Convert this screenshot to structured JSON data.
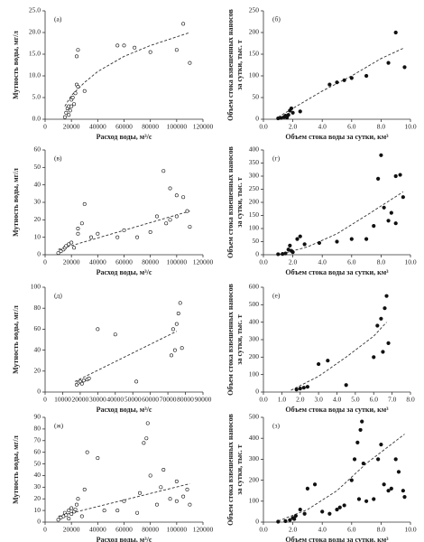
{
  "chart_data": [
    {
      "type": "scatter",
      "label": "(а)",
      "marker": "open",
      "ylabel": [
        "Мутность воды, мг/л"
      ],
      "xlabel": "Расход воды, м³/с",
      "xlim": [
        0,
        120000
      ],
      "xticks": [
        0,
        20000,
        40000,
        60000,
        80000,
        100000,
        120000
      ],
      "ylim": [
        0,
        25
      ],
      "yticks": [
        {
          "value": 0,
          "label": "0.0"
        },
        {
          "value": 5,
          "label": "5.0"
        },
        {
          "value": 10,
          "label": "10.0"
        },
        {
          "value": 15,
          "label": "15.0"
        },
        {
          "value": 20,
          "label": "20.0"
        },
        {
          "value": 25,
          "label": "25.0"
        }
      ],
      "x": [
        15000,
        16000,
        17000,
        18000,
        19000,
        20000,
        21000,
        22000,
        23000,
        24000,
        25000,
        24000,
        25000,
        30000,
        20000,
        18000,
        55000,
        60000,
        68000,
        80000,
        100000,
        105000,
        110000
      ],
      "y": [
        0.5,
        1.5,
        2.5,
        3,
        2,
        4.5,
        5,
        3.5,
        6,
        8,
        7.5,
        14.5,
        16,
        6.5,
        3,
        1,
        17,
        17,
        16.5,
        15.5,
        16,
        22,
        13
      ],
      "trend": {
        "x": [
          15000,
          20000,
          30000,
          40000,
          60000,
          80000,
          110000
        ],
        "y": [
          3,
          5.5,
          8.5,
          11,
          14.5,
          17,
          20
        ]
      }
    },
    {
      "type": "scatter",
      "label": "(б)",
      "marker": "filled",
      "ylabel": [
        "Объем стока взвешенных наносов",
        "за сутки, тыс. т"
      ],
      "xlabel": "Объем стока воды за сутки, км³",
      "xlim": [
        0,
        10
      ],
      "xticks": [
        {
          "value": 0,
          "label": "0.0"
        },
        {
          "value": 2,
          "label": "2.0"
        },
        {
          "value": 4,
          "label": "4.0"
        },
        {
          "value": 6,
          "label": "6.0"
        },
        {
          "value": 8,
          "label": "8.0"
        },
        {
          "value": 10,
          "label": "10.0"
        }
      ],
      "ylim": [
        0,
        250
      ],
      "yticks": [
        0,
        50,
        100,
        150,
        200,
        250
      ],
      "x": [
        1.0,
        1.2,
        1.4,
        1.5,
        1.6,
        1.7,
        1.8,
        1.9,
        2.0,
        2.5,
        4.5,
        5.0,
        5.5,
        6.0,
        7.0,
        8.5,
        9.0,
        9.6
      ],
      "y": [
        2,
        3,
        5,
        8,
        4,
        10,
        20,
        25,
        15,
        18,
        80,
        85,
        90,
        95,
        100,
        130,
        200,
        120
      ],
      "trend": {
        "x": [
          1,
          2,
          4,
          6,
          8,
          9.6
        ],
        "y": [
          5,
          25,
          65,
          100,
          140,
          165
        ]
      }
    },
    {
      "type": "scatter",
      "label": "(в)",
      "marker": "open",
      "ylabel": [
        "Мутность воды, мг/л"
      ],
      "xlabel": "Расход воды, м³/с",
      "xlim": [
        0,
        120000
      ],
      "xticks": [
        0,
        20000,
        40000,
        60000,
        80000,
        100000,
        120000
      ],
      "ylim": [
        0,
        60
      ],
      "yticks": [
        0,
        10,
        20,
        30,
        40,
        50,
        60
      ],
      "x": [
        10000,
        12000,
        14000,
        15000,
        16000,
        18000,
        20000,
        22000,
        25000,
        25000,
        28000,
        30000,
        35000,
        40000,
        55000,
        60000,
        70000,
        80000,
        85000,
        90000,
        92000,
        95000,
        95000,
        100000,
        100000,
        105000,
        108000,
        110000
      ],
      "y": [
        1,
        2,
        3,
        4,
        5,
        6,
        7,
        4,
        12,
        15,
        18,
        29,
        10,
        12,
        10,
        14,
        10,
        13,
        22,
        48,
        18,
        20,
        38,
        34,
        22,
        33,
        25,
        16
      ],
      "trend": {
        "x": [
          10000,
          110000
        ],
        "y": [
          3,
          25
        ]
      }
    },
    {
      "type": "scatter",
      "label": "(г)",
      "marker": "filled",
      "ylabel": [
        "Объем стока взвешенных наносов",
        "за сутки, тыс. т"
      ],
      "xlabel": "Объем стока воды за сутки, км³",
      "xlim": [
        0,
        10
      ],
      "xticks": [
        {
          "value": 0,
          "label": "0.0"
        },
        {
          "value": 2,
          "label": "2.0"
        },
        {
          "value": 4,
          "label": "4.0"
        },
        {
          "value": 6,
          "label": "6.0"
        },
        {
          "value": 8,
          "label": "8.0"
        },
        {
          "value": 10,
          "label": "10.0"
        }
      ],
      "ylim": [
        0,
        400
      ],
      "yticks": [
        0,
        50,
        100,
        150,
        200,
        250,
        300,
        350,
        400
      ],
      "x": [
        1.0,
        1.3,
        1.5,
        1.7,
        1.8,
        1.9,
        2.0,
        2.3,
        2.5,
        2.8,
        3.8,
        5.0,
        6.0,
        7.0,
        7.5,
        7.8,
        8.0,
        8.2,
        8.5,
        8.7,
        9.0,
        9.3,
        9.5,
        9.0
      ],
      "y": [
        2,
        3,
        5,
        20,
        35,
        15,
        10,
        60,
        70,
        40,
        45,
        50,
        60,
        60,
        110,
        290,
        380,
        180,
        130,
        160,
        300,
        305,
        220,
        120
      ],
      "trend": {
        "x": [
          1,
          3,
          5,
          7,
          9.5
        ],
        "y": [
          0,
          30,
          80,
          150,
          240
        ]
      }
    },
    {
      "type": "scatter",
      "label": "(д)",
      "marker": "open",
      "ylabel": [
        "Мутность воды, мг/л"
      ],
      "xlabel": "Расход воды, м³/с",
      "xlim": [
        0,
        90000
      ],
      "xticks": [
        0,
        10000,
        20000,
        30000,
        40000,
        50000,
        60000,
        70000,
        80000,
        90000
      ],
      "ylim": [
        0,
        100
      ],
      "yticks": [
        0,
        20,
        40,
        60,
        80,
        100
      ],
      "x": [
        18000,
        19000,
        20000,
        21000,
        22000,
        24000,
        25000,
        30000,
        40000,
        52000,
        72000,
        74000,
        75000,
        76000,
        77000,
        78000,
        73000
      ],
      "y": [
        7,
        9,
        10,
        8,
        11,
        12,
        13,
        60,
        55,
        10,
        35,
        40,
        65,
        75,
        85,
        42,
        60
      ],
      "trend": {
        "x": [
          17000,
          75000
        ],
        "y": [
          10,
          58
        ]
      }
    },
    {
      "type": "scatter",
      "label": "(е)",
      "marker": "filled",
      "ylabel": [
        "Объем стока взвешенных наносов",
        "за сутки, тыс. т"
      ],
      "xlabel": "Объем стока воды за сутки, км³",
      "xlim": [
        0,
        8
      ],
      "xticks": [
        {
          "value": 0,
          "label": "0.0"
        },
        {
          "value": 1,
          "label": "1.0"
        },
        {
          "value": 2,
          "label": "2.0"
        },
        {
          "value": 3,
          "label": "3.0"
        },
        {
          "value": 4,
          "label": "4.0"
        },
        {
          "value": 5,
          "label": "5.0"
        },
        {
          "value": 6,
          "label": "6.0"
        },
        {
          "value": 7,
          "label": "7.0"
        },
        {
          "value": 8,
          "label": "8.0"
        }
      ],
      "ylim": [
        0,
        600
      ],
      "yticks": [
        0,
        100,
        200,
        300,
        400,
        500,
        600
      ],
      "x": [
        1.8,
        2.0,
        2.2,
        2.4,
        3.0,
        3.5,
        4.5,
        6.0,
        6.2,
        6.4,
        6.6,
        6.7,
        6.8,
        6.5
      ],
      "y": [
        15,
        20,
        25,
        30,
        160,
        180,
        40,
        200,
        380,
        420,
        480,
        550,
        280,
        230
      ],
      "trend": {
        "x": [
          1.5,
          3,
          4.5,
          6,
          6.7
        ],
        "y": [
          10,
          90,
          200,
          320,
          400
        ]
      }
    },
    {
      "type": "scatter",
      "label": "(ж)",
      "marker": "open",
      "ylabel": [
        "Мутность воды, мг/л"
      ],
      "xlabel": "Расход воды, м³/с",
      "xlim": [
        0,
        120000
      ],
      "xticks": [
        0,
        20000,
        40000,
        60000,
        80000,
        100000,
        120000
      ],
      "ylim": [
        0,
        90
      ],
      "yticks": [
        0,
        10,
        20,
        30,
        40,
        50,
        60,
        70,
        80,
        90
      ],
      "x": [
        10000,
        12000,
        14000,
        15000,
        16000,
        18000,
        20000,
        20000,
        22000,
        24000,
        25000,
        28000,
        30000,
        32000,
        40000,
        45000,
        55000,
        60000,
        70000,
        72000,
        75000,
        77000,
        78000,
        80000,
        85000,
        88000,
        90000,
        95000,
        100000,
        100000,
        105000,
        108000,
        110000,
        18000,
        23000
      ],
      "y": [
        2,
        4,
        5,
        8,
        6,
        10,
        12,
        7,
        9,
        15,
        20,
        5,
        28,
        60,
        55,
        10,
        10,
        18,
        8,
        25,
        68,
        72,
        85,
        40,
        15,
        30,
        45,
        20,
        18,
        35,
        22,
        28,
        15,
        3,
        11
      ],
      "trend": {
        "x": [
          10000,
          110000
        ],
        "y": [
          5,
          33
        ]
      }
    },
    {
      "type": "scatter",
      "label": "(з)",
      "marker": "filled",
      "ylabel": [
        "Объем стока взвешенных наносов",
        "за сутки, тыс. т"
      ],
      "xlabel": "Объем стока воды за сутки, км³",
      "xlim": [
        0,
        10
      ],
      "xticks": [
        {
          "value": 0,
          "label": "0.0"
        },
        {
          "value": 2,
          "label": "2.0"
        },
        {
          "value": 4,
          "label": "4.0"
        },
        {
          "value": 6,
          "label": "6.0"
        },
        {
          "value": 8,
          "label": "8.0"
        },
        {
          "value": 10,
          "label": "10.0"
        }
      ],
      "ylim": [
        0,
        500
      ],
      "yticks": [
        0,
        100,
        200,
        300,
        400,
        500
      ],
      "x": [
        1.0,
        1.5,
        1.8,
        2.0,
        2.2,
        2.5,
        2.8,
        3.0,
        3.5,
        4.0,
        4.5,
        5.0,
        5.5,
        6.0,
        6.2,
        6.4,
        6.6,
        6.7,
        6.8,
        7.0,
        7.5,
        7.8,
        8.0,
        8.2,
        8.5,
        8.7,
        9.0,
        9.2,
        9.5,
        9.6,
        5.2,
        6.5,
        2.1
      ],
      "y": [
        2,
        5,
        10,
        20,
        30,
        60,
        40,
        160,
        180,
        50,
        40,
        60,
        80,
        200,
        300,
        380,
        440,
        480,
        280,
        100,
        110,
        300,
        370,
        180,
        150,
        160,
        300,
        240,
        150,
        120,
        70,
        110,
        15
      ],
      "trend": {
        "x": [
          1,
          3,
          5,
          7,
          9.6
        ],
        "y": [
          5,
          60,
          150,
          280,
          420
        ]
      }
    }
  ]
}
